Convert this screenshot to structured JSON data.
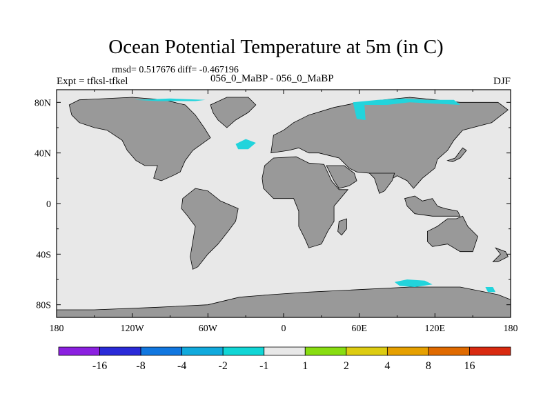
{
  "title": "Ocean Potential Temperature at 5m (in C)",
  "stats": "rmsd= 0.517676 diff= -0.467196",
  "experiment": "Expt = tfksl-tfkel",
  "runs": "056_0_MaBP - 056_0_MaBP",
  "season": "DJF",
  "colors": {
    "ocean": "#e8e8e8",
    "land": "#999999",
    "anomaly": "#22d4dc",
    "frame": "#000000"
  },
  "map": {
    "lon_range": [
      -180,
      180
    ],
    "lat_range": [
      -90,
      90
    ],
    "x_ticks": [
      {
        "lon": -180,
        "label": "180"
      },
      {
        "lon": -120,
        "label": "120W"
      },
      {
        "lon": -60,
        "label": "60W"
      },
      {
        "lon": 0,
        "label": "0"
      },
      {
        "lon": 60,
        "label": "60E"
      },
      {
        "lon": 120,
        "label": "120E"
      },
      {
        "lon": 180,
        "label": "180"
      }
    ],
    "y_ticks": [
      {
        "lat": 80,
        "label": "80N"
      },
      {
        "lat": 40,
        "label": "40N"
      },
      {
        "lat": 0,
        "label": "0"
      },
      {
        "lat": -40,
        "label": "40S"
      },
      {
        "lat": -80,
        "label": "80S"
      }
    ],
    "land": [
      {
        "name": "north-america",
        "points": [
          [
            -170,
            78
          ],
          [
            -162,
            82
          ],
          [
            -120,
            84
          ],
          [
            -95,
            82
          ],
          [
            -78,
            78
          ],
          [
            -70,
            70
          ],
          [
            -63,
            60
          ],
          [
            -58,
            52
          ],
          [
            -72,
            42
          ],
          [
            -78,
            34
          ],
          [
            -82,
            25
          ],
          [
            -88,
            22
          ],
          [
            -97,
            18
          ],
          [
            -103,
            20
          ],
          [
            -100,
            30
          ],
          [
            -110,
            30
          ],
          [
            -117,
            34
          ],
          [
            -124,
            42
          ],
          [
            -128,
            50
          ],
          [
            -140,
            58
          ],
          [
            -150,
            60
          ],
          [
            -162,
            64
          ],
          [
            -168,
            70
          ]
        ]
      },
      {
        "name": "greenland",
        "points": [
          [
            -58,
            78
          ],
          [
            -45,
            84
          ],
          [
            -28,
            84
          ],
          [
            -22,
            78
          ],
          [
            -28,
            72
          ],
          [
            -38,
            66
          ],
          [
            -45,
            60
          ],
          [
            -52,
            66
          ],
          [
            -56,
            72
          ]
        ]
      },
      {
        "name": "south-america",
        "points": [
          [
            -80,
            4
          ],
          [
            -70,
            12
          ],
          [
            -60,
            10
          ],
          [
            -50,
            2
          ],
          [
            -36,
            -4
          ],
          [
            -38,
            -14
          ],
          [
            -44,
            -22
          ],
          [
            -52,
            -32
          ],
          [
            -60,
            -40
          ],
          [
            -68,
            -50
          ],
          [
            -72,
            -52
          ],
          [
            -74,
            -42
          ],
          [
            -72,
            -30
          ],
          [
            -70,
            -18
          ],
          [
            -76,
            -10
          ],
          [
            -81,
            -4
          ]
        ]
      },
      {
        "name": "eurasia",
        "points": [
          [
            -10,
            40
          ],
          [
            -8,
            54
          ],
          [
            0,
            58
          ],
          [
            8,
            64
          ],
          [
            20,
            70
          ],
          [
            40,
            76
          ],
          [
            60,
            80
          ],
          [
            100,
            84
          ],
          [
            140,
            80
          ],
          [
            170,
            80
          ],
          [
            178,
            74
          ],
          [
            165,
            64
          ],
          [
            142,
            58
          ],
          [
            135,
            50
          ],
          [
            130,
            42
          ],
          [
            122,
            35
          ],
          [
            120,
            28
          ],
          [
            110,
            20
          ],
          [
            103,
            12
          ],
          [
            98,
            18
          ],
          [
            90,
            22
          ],
          [
            80,
            16
          ],
          [
            75,
            22
          ],
          [
            68,
            24
          ],
          [
            58,
            25
          ],
          [
            52,
            28
          ],
          [
            44,
            36
          ],
          [
            36,
            38
          ],
          [
            28,
            40
          ],
          [
            20,
            40
          ],
          [
            12,
            44
          ],
          [
            4,
            42
          ]
        ]
      },
      {
        "name": "africa",
        "points": [
          [
            -17,
            20
          ],
          [
            -15,
            30
          ],
          [
            -8,
            36
          ],
          [
            10,
            37
          ],
          [
            20,
            32
          ],
          [
            32,
            31
          ],
          [
            38,
            18
          ],
          [
            44,
            11
          ],
          [
            51,
            11
          ],
          [
            40,
            -2
          ],
          [
            40,
            -14
          ],
          [
            35,
            -22
          ],
          [
            30,
            -32
          ],
          [
            20,
            -35
          ],
          [
            17,
            -28
          ],
          [
            12,
            -18
          ],
          [
            12,
            -6
          ],
          [
            8,
            4
          ],
          [
            -8,
            4
          ],
          [
            -16,
            12
          ]
        ]
      },
      {
        "name": "arabia",
        "points": [
          [
            34,
            30
          ],
          [
            48,
            30
          ],
          [
            56,
            24
          ],
          [
            58,
            18
          ],
          [
            52,
            14
          ],
          [
            44,
            12
          ],
          [
            40,
            18
          ]
        ]
      },
      {
        "name": "madagascar",
        "points": [
          [
            44,
            -14
          ],
          [
            50,
            -12
          ],
          [
            50,
            -20
          ],
          [
            46,
            -25
          ],
          [
            43,
            -22
          ]
        ]
      },
      {
        "name": "india",
        "points": [
          [
            68,
            24
          ],
          [
            88,
            24
          ],
          [
            86,
            18
          ],
          [
            80,
            10
          ],
          [
            76,
            8
          ],
          [
            72,
            20
          ]
        ]
      },
      {
        "name": "se-asia-islands",
        "points": [
          [
            96,
            4
          ],
          [
            104,
            6
          ],
          [
            110,
            2
          ],
          [
            118,
            4
          ],
          [
            122,
            -2
          ],
          [
            128,
            -4
          ],
          [
            138,
            -6
          ],
          [
            140,
            -10
          ],
          [
            118,
            -10
          ],
          [
            104,
            -8
          ],
          [
            98,
            -2
          ]
        ]
      },
      {
        "name": "japan",
        "points": [
          [
            130,
            34
          ],
          [
            136,
            36
          ],
          [
            142,
            44
          ],
          [
            145,
            42
          ],
          [
            140,
            36
          ],
          [
            134,
            33
          ]
        ]
      },
      {
        "name": "australia",
        "points": [
          [
            114,
            -22
          ],
          [
            122,
            -18
          ],
          [
            130,
            -12
          ],
          [
            137,
            -12
          ],
          [
            142,
            -10
          ],
          [
            146,
            -18
          ],
          [
            154,
            -26
          ],
          [
            150,
            -38
          ],
          [
            140,
            -38
          ],
          [
            130,
            -32
          ],
          [
            118,
            -34
          ],
          [
            114,
            -30
          ]
        ]
      },
      {
        "name": "new-zealand",
        "points": [
          [
            168,
            -35
          ],
          [
            176,
            -38
          ],
          [
            178,
            -42
          ],
          [
            170,
            -46
          ],
          [
            166,
            -46
          ],
          [
            172,
            -40
          ]
        ]
      },
      {
        "name": "antarctica",
        "points": [
          [
            -180,
            -90
          ],
          [
            -180,
            -84
          ],
          [
            -150,
            -84
          ],
          [
            -100,
            -82
          ],
          [
            -60,
            -80
          ],
          [
            -35,
            -74
          ],
          [
            -10,
            -72
          ],
          [
            20,
            -70
          ],
          [
            60,
            -68
          ],
          [
            100,
            -66
          ],
          [
            140,
            -66
          ],
          [
            170,
            -72
          ],
          [
            180,
            -76
          ],
          [
            180,
            -90
          ]
        ]
      }
    ],
    "anomalies": [
      {
        "name": "anomaly-arctic-west",
        "points": [
          [
            -118,
            82
          ],
          [
            -90,
            83
          ],
          [
            -62,
            82
          ],
          [
            -70,
            81
          ],
          [
            -100,
            81
          ]
        ]
      },
      {
        "name": "anomaly-north-atlantic",
        "points": [
          [
            -38,
            47
          ],
          [
            -30,
            51
          ],
          [
            -22,
            48
          ],
          [
            -28,
            43
          ],
          [
            -36,
            43
          ]
        ]
      },
      {
        "name": "anomaly-arctic-siberia",
        "points": [
          [
            55,
            80
          ],
          [
            75,
            82
          ],
          [
            95,
            83
          ],
          [
            115,
            82
          ],
          [
            135,
            82
          ],
          [
            140,
            78
          ],
          [
            120,
            79
          ],
          [
            100,
            80
          ],
          [
            82,
            78
          ],
          [
            65,
            78
          ]
        ]
      },
      {
        "name": "anomaly-barents",
        "points": [
          [
            55,
            80
          ],
          [
            64,
            80
          ],
          [
            65,
            66
          ],
          [
            58,
            67
          ]
        ]
      },
      {
        "name": "anomaly-southern-ocean",
        "points": [
          [
            88,
            -62
          ],
          [
            98,
            -60
          ],
          [
            112,
            -61
          ],
          [
            118,
            -64
          ],
          [
            104,
            -66
          ],
          [
            92,
            -65
          ]
        ]
      },
      {
        "name": "anomaly-ross-sea",
        "points": [
          [
            160,
            -66
          ],
          [
            166,
            -66
          ],
          [
            168,
            -70
          ],
          [
            162,
            -70
          ]
        ]
      }
    ]
  },
  "colorbar": {
    "labels": [
      "-16",
      "-8",
      "-4",
      "-2",
      "-1",
      "1",
      "2",
      "4",
      "8",
      "16"
    ],
    "colors": [
      "#8b20e0",
      "#2a2ad8",
      "#1177e0",
      "#11aadd",
      "#11d6d6",
      "#e8e8e8",
      "#88dd11",
      "#ddcc11",
      "#e6a000",
      "#e06a00",
      "#d92a10"
    ]
  }
}
